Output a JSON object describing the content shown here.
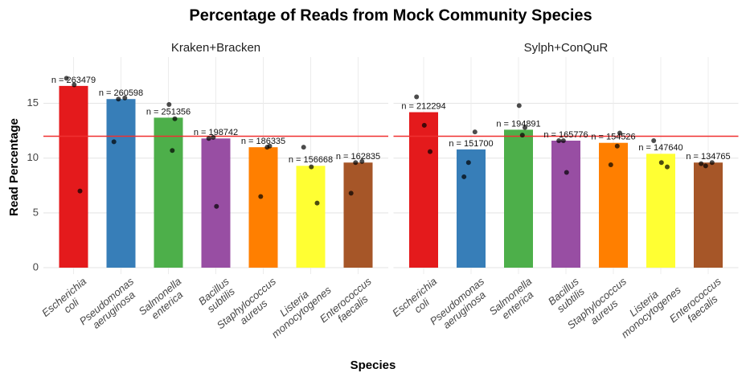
{
  "title": "Percentage of Reads from Mock Community Species",
  "x_label": "Species",
  "y_label": "Read Percentage",
  "chart_data": [
    {
      "type": "bar",
      "title": "Kraken+Bracken",
      "categories": [
        "Escherichia\ncoli",
        "Pseudomonas\naeruginosa",
        "Salmonella\nenterica",
        "Bacillus\nsubtilis",
        "Staphylococcus\naureus",
        "Listeria\nmonocytogenes",
        "Enterococcus\nfaecalis"
      ],
      "values": [
        16.6,
        15.4,
        13.7,
        11.8,
        11.0,
        9.3,
        9.6
      ],
      "n_labels": [
        "n = 263479",
        "n = 260598",
        "n = 251356",
        "n = 198742",
        "n = 186335",
        "n = 156668",
        "n = 162835"
      ],
      "points": [
        [
          17.3,
          16.7,
          7.0
        ],
        [
          15.5,
          15.4,
          11.5
        ],
        [
          14.9,
          13.6,
          10.7
        ],
        [
          11.9,
          11.8,
          5.6
        ],
        [
          11.1,
          11.0,
          6.5
        ],
        [
          11.0,
          9.2,
          5.9
        ],
        [
          9.7,
          9.6,
          6.8
        ]
      ],
      "colors": [
        "#e41a1c",
        "#377eb8",
        "#4daf4a",
        "#984ea3",
        "#ff7f00",
        "#ffff33",
        "#a65628"
      ],
      "hline": 12,
      "hline_color": "#f03030",
      "ylim": [
        0,
        18.5
      ],
      "yticks": [
        0,
        5,
        10,
        15
      ],
      "grid": true
    },
    {
      "type": "bar",
      "title": "Sylph+ConQuR",
      "categories": [
        "Escherichia\ncoli",
        "Pseudomonas\naeruginosa",
        "Salmonella\nenterica",
        "Bacillus\nsubtilis",
        "Staphylococcus\naureus",
        "Listeria\nmonocytogenes",
        "Enterococcus\nfaecalis"
      ],
      "values": [
        14.2,
        10.8,
        12.6,
        11.6,
        11.4,
        10.4,
        9.6
      ],
      "n_labels": [
        "n = 212294",
        "n = 151700",
        "n = 194891",
        "n = 165776",
        "n = 154526",
        "n = 147640",
        "n = 134765"
      ],
      "points": [
        [
          15.6,
          13.0,
          10.6
        ],
        [
          12.4,
          9.6,
          8.3
        ],
        [
          14.8,
          12.8,
          12.1
        ],
        [
          11.6,
          11.6,
          8.7
        ],
        [
          12.3,
          11.1,
          9.4
        ],
        [
          11.6,
          9.6,
          9.2
        ],
        [
          9.6,
          9.3,
          9.5
        ]
      ],
      "colors": [
        "#e41a1c",
        "#377eb8",
        "#4daf4a",
        "#984ea3",
        "#ff7f00",
        "#ffff33",
        "#a65628"
      ],
      "hline": 12,
      "hline_color": "#f03030",
      "ylim": [
        0,
        18.5
      ],
      "yticks": [
        0,
        5,
        10,
        15
      ],
      "grid": true
    }
  ]
}
